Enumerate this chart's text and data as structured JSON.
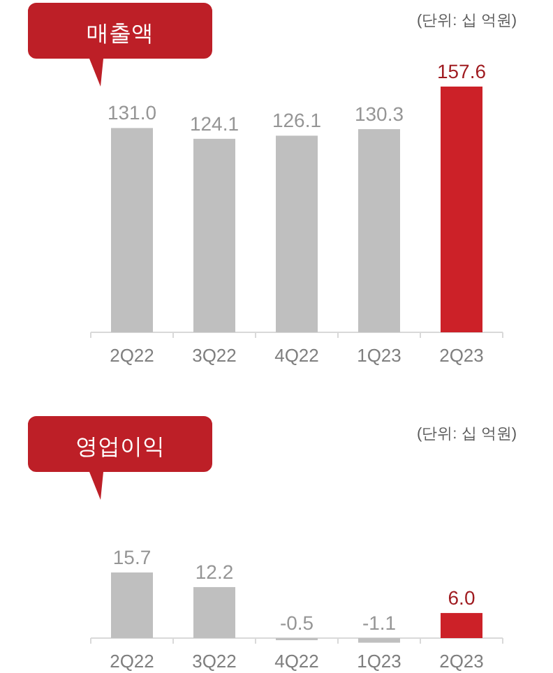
{
  "chart_data": [
    {
      "type": "bar",
      "title": "매출액",
      "subtitle": "(단위: 십 억원)",
      "categories": [
        "2Q22",
        "3Q22",
        "4Q22",
        "1Q23",
        "2Q23"
      ],
      "values": [
        131.0,
        124.1,
        126.1,
        130.3,
        157.6
      ],
      "colors": [
        "#bfbfbf",
        "#bfbfbf",
        "#bfbfbf",
        "#bfbfbf",
        "#cc2128"
      ],
      "value_labels": [
        "131.0",
        "124.1",
        "126.1",
        "130.3",
        "157.6"
      ]
    },
    {
      "type": "bar",
      "title": "영업이익",
      "subtitle": "(단위: 십 억원)",
      "categories": [
        "2Q22",
        "3Q22",
        "4Q22",
        "1Q23",
        "2Q23"
      ],
      "values": [
        15.7,
        12.2,
        -0.5,
        -1.1,
        6.0
      ],
      "colors": [
        "#bfbfbf",
        "#bfbfbf",
        "#bfbfbf",
        "#bfbfbf",
        "#cc2128"
      ],
      "value_labels": [
        "15.7",
        "12.2",
        "-0.5",
        "-1.1",
        "6.0"
      ]
    }
  ]
}
